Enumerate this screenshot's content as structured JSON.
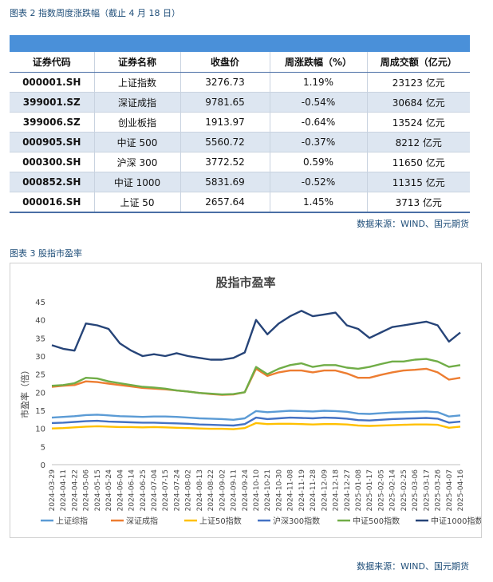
{
  "captions": {
    "table": "图表 2 指数周度涨跌幅（截止 4 月 18 日）",
    "chart": "图表 3 股指市盈率"
  },
  "source_text": "数据来源：WIND、国元期货",
  "table": {
    "headers": [
      "证券代码",
      "证券名称",
      "收盘价",
      "周涨跌幅（%）",
      "周成交额（亿元）"
    ],
    "rows": [
      [
        "000001.SH",
        "上证指数",
        "3276.73",
        "1.19%",
        "23123 亿元"
      ],
      [
        "399001.SZ",
        "深证成指",
        "9781.65",
        "-0.54%",
        "30684 亿元"
      ],
      [
        "399006.SZ",
        "创业板指",
        "1913.97",
        "-0.64%",
        "13524 亿元"
      ],
      [
        "000905.SH",
        "中证 500",
        "5560.72",
        "-0.37%",
        "8212 亿元"
      ],
      [
        "000300.SH",
        "沪深 300",
        "3772.52",
        "0.59%",
        "11650 亿元"
      ],
      [
        "000852.SH",
        "中证 1000",
        "5831.69",
        "-0.52%",
        "11315 亿元"
      ],
      [
        "000016.SH",
        "上证 50",
        "2657.64",
        "1.45%",
        "3713 亿元"
      ]
    ]
  },
  "chart_data": {
    "type": "line",
    "title": "股指市盈率",
    "ylabel": "市盈率（倍）",
    "xlabel": "",
    "ylim": [
      0,
      45
    ],
    "yticks": [
      0,
      5,
      10,
      15,
      20,
      25,
      30,
      35,
      40,
      45
    ],
    "grid": false,
    "legend_position": "bottom",
    "x": [
      "2024-03-29",
      "2024-04-11",
      "2024-04-22",
      "2024-05-06",
      "2024-05-15",
      "2024-05-24",
      "2024-06-04",
      "2024-06-14",
      "2024-06-25",
      "2024-07-04",
      "2024-07-15",
      "2024-07-24",
      "2024-08-02",
      "2024-08-13",
      "2024-08-22",
      "2024-09-02",
      "2024-09-11",
      "2024-09-24",
      "2024-10-10",
      "2024-10-21",
      "2024-10-30",
      "2024-11-08",
      "2024-11-19",
      "2024-11-28",
      "2024-12-09",
      "2024-12-18",
      "2024-12-27",
      "2025-01-08",
      "2025-01-17",
      "2025-02-05",
      "2025-02-14",
      "2025-02-25",
      "2025-03-06",
      "2025-03-17",
      "2025-03-26",
      "2025-04-07",
      "2025-04-16"
    ],
    "colors": {
      "上证综指": "#5b9bd5",
      "深证成指": "#ed7d31",
      "上证50指数": "#ffc000",
      "沪深300指数": "#4472c4",
      "中证500指数": "#70ad47",
      "中证1000指数": "#264478"
    },
    "series": [
      {
        "name": "上证综指",
        "values": [
          13.0,
          13.2,
          13.4,
          13.7,
          13.8,
          13.6,
          13.4,
          13.3,
          13.2,
          13.3,
          13.3,
          13.2,
          13.0,
          12.8,
          12.7,
          12.6,
          12.4,
          12.8,
          14.8,
          14.5,
          14.7,
          14.9,
          14.8,
          14.7,
          14.9,
          14.8,
          14.6,
          14.1,
          14.0,
          14.2,
          14.4,
          14.5,
          14.6,
          14.7,
          14.5,
          13.3,
          13.6
        ]
      },
      {
        "name": "深证成指",
        "values": [
          21.5,
          21.8,
          22.0,
          23.0,
          22.8,
          22.4,
          22.0,
          21.6,
          21.2,
          21.0,
          20.8,
          20.5,
          20.2,
          19.8,
          19.5,
          19.3,
          19.4,
          20.0,
          26.5,
          24.5,
          25.5,
          26.0,
          26.0,
          25.5,
          26.0,
          26.0,
          25.2,
          24.0,
          24.0,
          24.8,
          25.5,
          26.0,
          26.2,
          26.5,
          25.5,
          23.5,
          24.0
        ]
      },
      {
        "name": "上证50指数",
        "values": [
          10.0,
          10.1,
          10.3,
          10.5,
          10.6,
          10.5,
          10.4,
          10.4,
          10.3,
          10.4,
          10.3,
          10.2,
          10.1,
          10.0,
          9.9,
          9.9,
          9.8,
          10.1,
          11.5,
          11.2,
          11.3,
          11.3,
          11.2,
          11.1,
          11.2,
          11.2,
          11.1,
          10.8,
          10.7,
          10.8,
          10.9,
          11.0,
          11.1,
          11.1,
          11.0,
          10.2,
          10.5
        ]
      },
      {
        "name": "沪深300指数",
        "values": [
          11.5,
          11.6,
          11.8,
          12.0,
          12.1,
          11.9,
          11.8,
          11.7,
          11.6,
          11.6,
          11.5,
          11.4,
          11.3,
          11.1,
          11.0,
          10.9,
          10.8,
          11.2,
          13.0,
          12.6,
          12.8,
          13.0,
          12.9,
          12.8,
          13.0,
          12.9,
          12.7,
          12.3,
          12.2,
          12.4,
          12.6,
          12.7,
          12.8,
          12.9,
          12.7,
          11.6,
          11.9
        ]
      },
      {
        "name": "中证500指数",
        "values": [
          21.8,
          22.0,
          22.5,
          24.0,
          23.8,
          23.0,
          22.5,
          22.0,
          21.5,
          21.3,
          21.0,
          20.5,
          20.2,
          19.8,
          19.6,
          19.4,
          19.5,
          20.0,
          27.0,
          25.0,
          26.5,
          27.5,
          28.0,
          27.0,
          27.5,
          27.5,
          26.8,
          26.5,
          27.0,
          27.8,
          28.5,
          28.5,
          29.0,
          29.2,
          28.5,
          27.0,
          27.5
        ]
      },
      {
        "name": "中证1000指数",
        "values": [
          33.0,
          32.0,
          31.5,
          39.0,
          38.5,
          37.5,
          33.5,
          31.5,
          30.0,
          30.5,
          30.0,
          30.8,
          30.0,
          29.5,
          29.0,
          29.0,
          29.5,
          31.0,
          40.0,
          36.0,
          39.0,
          41.0,
          42.5,
          41.0,
          41.5,
          42.0,
          38.5,
          37.5,
          35.0,
          36.5,
          38.0,
          38.5,
          39.0,
          39.5,
          38.5,
          34.0,
          36.5
        ]
      }
    ]
  }
}
